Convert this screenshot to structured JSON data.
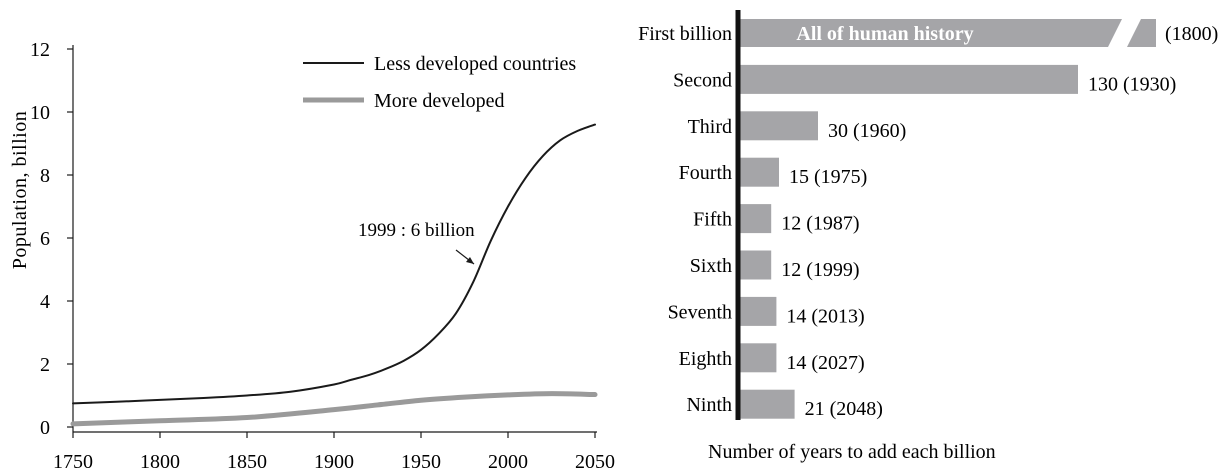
{
  "chart_data": [
    {
      "type": "line",
      "ylabel": "Population, billion",
      "xlim": [
        1750,
        2050
      ],
      "ylim": [
        0,
        12
      ],
      "x_ticks": [
        1750,
        1800,
        1850,
        1900,
        1950,
        2000,
        2050
      ],
      "y_ticks": [
        0,
        2,
        4,
        6,
        8,
        10,
        12
      ],
      "legend_position": "top-right",
      "series": [
        {
          "name": "Less developed countries",
          "color": "#1a1a1a",
          "x": [
            1750,
            1775,
            1800,
            1825,
            1850,
            1875,
            1900,
            1910,
            1920,
            1930,
            1940,
            1950,
            1960,
            1970,
            1980,
            1990,
            2000,
            2010,
            2020,
            2030,
            2040,
            2050
          ],
          "y": [
            0.75,
            0.8,
            0.86,
            0.92,
            1.0,
            1.12,
            1.35,
            1.5,
            1.65,
            1.85,
            2.1,
            2.45,
            2.95,
            3.6,
            4.6,
            5.9,
            7.0,
            7.9,
            8.6,
            9.1,
            9.4,
            9.6
          ]
        },
        {
          "name": "More developed",
          "color": "#9a9a9a",
          "x": [
            1750,
            1800,
            1850,
            1900,
            1925,
            1950,
            1975,
            2000,
            2025,
            2050
          ],
          "y": [
            0.1,
            0.2,
            0.3,
            0.55,
            0.7,
            0.85,
            0.95,
            1.02,
            1.06,
            1.03
          ]
        }
      ],
      "annotation": {
        "text": "1999 : 6 billion",
        "x": 1985,
        "y": 4.8
      }
    },
    {
      "type": "bar",
      "orientation": "horizontal",
      "xlabel": "Number of years to add each billion",
      "bar_color": "#a5a5a8",
      "categories": [
        "First billion",
        "Second",
        "Third",
        "Fourth",
        "Fifth",
        "Sixth",
        "Seventh",
        "Eighth",
        "Ninth"
      ],
      "values": [
        null,
        130,
        30,
        15,
        12,
        12,
        14,
        14,
        21
      ],
      "labels": [
        "(1800)",
        "130 (1930)",
        "30 (1960)",
        "15 (1975)",
        "12 (1987)",
        "12 (1999)",
        "14 (2013)",
        "14 (2027)",
        "21 (2048)"
      ],
      "broken_bar_text": "All of human history"
    }
  ]
}
